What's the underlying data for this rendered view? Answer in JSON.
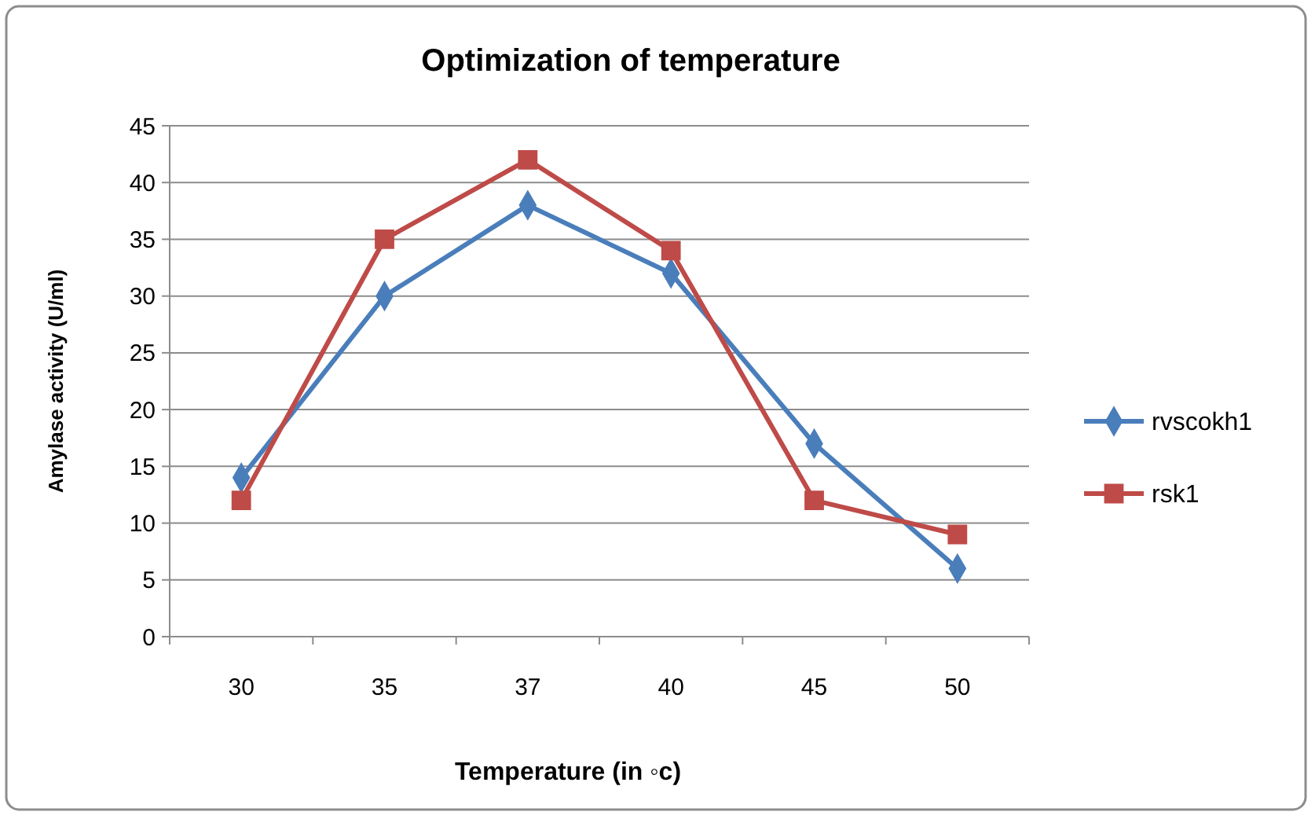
{
  "chart_data": {
    "type": "line",
    "title": "Optimization of temperature",
    "xlabel": "Temperature (in ◦c)",
    "ylabel": "Amylase activity (U/ml)",
    "categories": [
      "30",
      "35",
      "37",
      "40",
      "45",
      "50"
    ],
    "series": [
      {
        "name": "rvscokh1",
        "color": "#4a7ebb",
        "marker": "diamond",
        "values": [
          14,
          30,
          38,
          32,
          17,
          6
        ]
      },
      {
        "name": "rsk1",
        "color": "#be4b48",
        "marker": "square",
        "values": [
          12,
          35,
          42,
          34,
          12,
          9
        ]
      }
    ],
    "ylim": [
      0,
      45
    ],
    "yticks": [
      0,
      5,
      10,
      15,
      20,
      25,
      30,
      35,
      40,
      45
    ],
    "grid": "y",
    "legend": "right",
    "line_style": "solid"
  }
}
